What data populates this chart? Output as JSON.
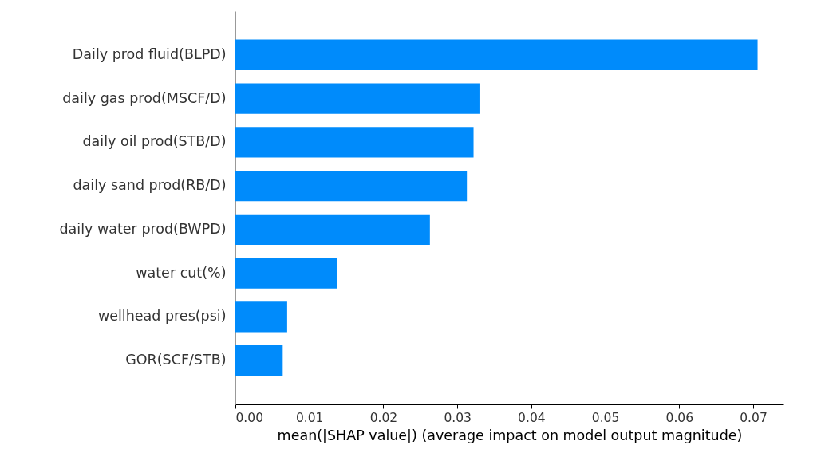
{
  "chart_data": {
    "type": "bar",
    "orientation": "horizontal",
    "xlabel": "mean(|SHAP value|) (average impact on model output magnitude)",
    "categories": [
      "Daily prod fluid(BLPD)",
      "daily gas prod(MSCF/D)",
      "daily oil prod(STB/D)",
      "daily sand prod(RB/D)",
      "daily water prod(BWPD)",
      "water cut(%)",
      "wellhead pres(psi)",
      "GOR(SCF/STB)"
    ],
    "values": [
      0.0706,
      0.033,
      0.0322,
      0.0313,
      0.0263,
      0.0137,
      0.007,
      0.0064
    ],
    "color": "#008bfb",
    "xlim": [
      0,
      0.0741
    ],
    "xticks": [
      {
        "value": 0,
        "label": "0.00"
      },
      {
        "value": 0.01,
        "label": "0.01"
      },
      {
        "value": 0.02,
        "label": "0.02"
      },
      {
        "value": 0.03,
        "label": "0.03"
      },
      {
        "value": 0.04,
        "label": "0.04"
      },
      {
        "value": 0.05,
        "label": "0.05"
      },
      {
        "value": 0.06,
        "label": "0.06"
      },
      {
        "value": 0.07,
        "label": "0.07"
      }
    ],
    "grid": false
  }
}
